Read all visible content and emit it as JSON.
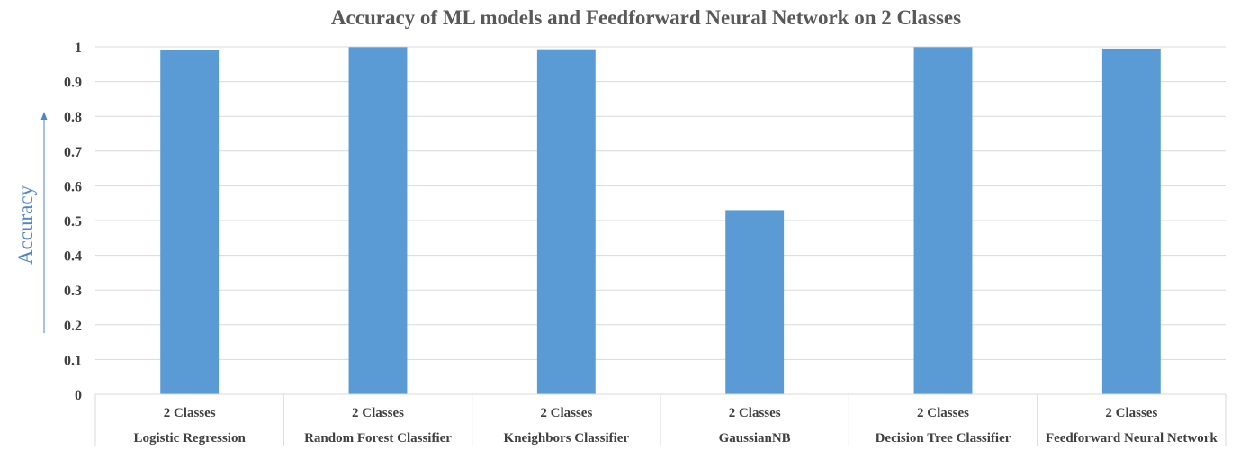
{
  "chart_data": {
    "type": "bar",
    "title": "Accuracy of ML models and Feedforward Neural Network on 2 Classes",
    "ylabel": "Accuracy",
    "xlabel": "",
    "ylim": [
      0,
      1
    ],
    "yticks": [
      "0",
      "0.1",
      "0.2",
      "0.3",
      "0.4",
      "0.5",
      "0.6",
      "0.7",
      "0.8",
      "0.9",
      "1"
    ],
    "grid": true,
    "group_label": "2 Classes",
    "categories": [
      "Logistic Regression",
      "Random Forest Classifier",
      "Kneighbors Classifier",
      "GaussianNB",
      "Decision Tree Classifier",
      "Feedforward Neural Network"
    ],
    "values": [
      0.99,
      0.999,
      0.993,
      0.53,
      0.999,
      0.995
    ],
    "bar_color": "#5b9bd5",
    "axis_label_color": "#4f86c6"
  }
}
